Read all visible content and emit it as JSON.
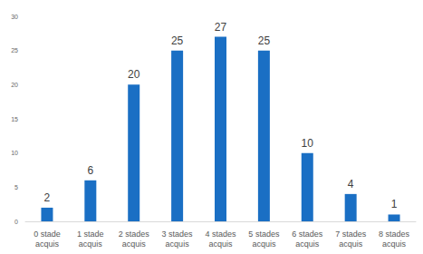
{
  "chart_data": {
    "type": "bar",
    "categories": [
      "0 stade acquis",
      "1 stade acquis",
      "2 stades acquis",
      "3 stades acquis",
      "4 stades acquis",
      "5 stades acquis",
      "6 stades acquis",
      "7 stades acquis",
      "8 stades acquis"
    ],
    "values": [
      2,
      6,
      20,
      25,
      27,
      25,
      10,
      4,
      1
    ],
    "color": "#1a6fc4",
    "ylim": [
      0,
      30
    ],
    "yticks": [
      0,
      5,
      10,
      15,
      20,
      25,
      30
    ],
    "grid": false,
    "data_labels": true
  }
}
